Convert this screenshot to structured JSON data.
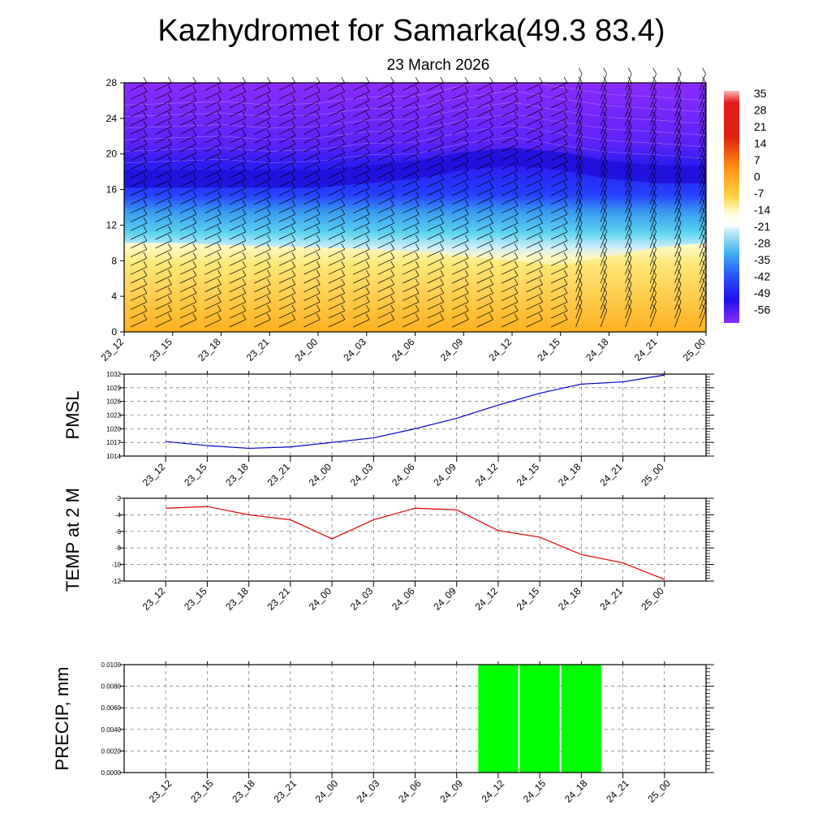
{
  "title": "Kazhydromet for Samarka(49.3 83.4)",
  "subtitle": "23 March 2026",
  "time_labels": [
    "23_12",
    "23_15",
    "23_18",
    "23_21",
    "24_00",
    "24_03",
    "24_06",
    "24_09",
    "24_12",
    "24_15",
    "24_18",
    "24_21",
    "25_00"
  ],
  "chart_data": [
    {
      "type": "heatmap",
      "panel": "upper-air temperature and wind cross-section",
      "y_ticks": [
        0,
        4,
        8,
        12,
        16,
        20,
        24,
        28
      ],
      "ylim": [
        0,
        28
      ],
      "colorbar": {
        "labels": [
          "35",
          "28",
          "21",
          "14",
          "7",
          "0",
          "-7",
          "-14",
          "-21",
          "-28",
          "-35",
          "-42",
          "-49",
          "-56"
        ],
        "min": -63,
        "max": 42
      },
      "temperature_layers": [
        {
          "name": "freezing-level",
          "approx_top": [
            10,
            10,
            9.8,
            9.6,
            9.5,
            9.3,
            9,
            8.5,
            8,
            7.5,
            8.5,
            9.5,
            10
          ]
        },
        {
          "name": "tropopause",
          "approx_height": [
            17,
            17,
            17,
            17,
            17,
            17.5,
            18,
            19,
            19.5,
            19,
            18,
            17.5,
            17.5
          ]
        }
      ],
      "colors": {
        "cold": "#8c2cff",
        "cool": "#2a1cf0",
        "mid": "#59d2f0",
        "warm": "#ffe46a",
        "hot": "#ffae1a"
      }
    },
    {
      "type": "line",
      "ylabel": "PMSL",
      "y_ticks": [
        "1014",
        "1017",
        "1020",
        "1023",
        "1026",
        "1029",
        "1032"
      ],
      "ylim": [
        1014,
        1032
      ],
      "series": [
        {
          "values": [
            1017.2,
            1016.3,
            1015.7,
            1016.0,
            1017.0,
            1018.0,
            1020.0,
            1022.3,
            1025.2,
            1027.8,
            1029.8,
            1030.3,
            1031.8
          ]
        }
      ],
      "color": "#0000cc"
    },
    {
      "type": "line",
      "ylabel": "TEMP at 2 M",
      "y_ticks": [
        "-2",
        "-4",
        "-6",
        "-8",
        "-10",
        "-12"
      ],
      "ylim": [
        -12,
        -2
      ],
      "series": [
        {
          "values": [
            -3.2,
            -3.0,
            -4.0,
            -4.6,
            -6.9,
            -4.6,
            -3.2,
            -3.4,
            -5.9,
            -6.7,
            -8.8,
            -9.8,
            -11.8
          ]
        }
      ],
      "color": "#e00000"
    },
    {
      "type": "bar",
      "ylabel": "PRECIP, mm",
      "y_ticks": [
        "0.0000",
        "0.0020",
        "0.0040",
        "0.0060",
        "0.0080",
        "0.0100"
      ],
      "ylim": [
        0,
        0.01
      ],
      "categories": [
        "23_12",
        "23_15",
        "23_18",
        "23_21",
        "24_00",
        "24_03",
        "24_06",
        "24_09",
        "24_12",
        "24_15",
        "24_18",
        "24_21",
        "25_00"
      ],
      "values": [
        0,
        0,
        0,
        0,
        0,
        0,
        0,
        0,
        0.01,
        0.01,
        0.01,
        0,
        0
      ],
      "color": "#00ff00"
    }
  ]
}
